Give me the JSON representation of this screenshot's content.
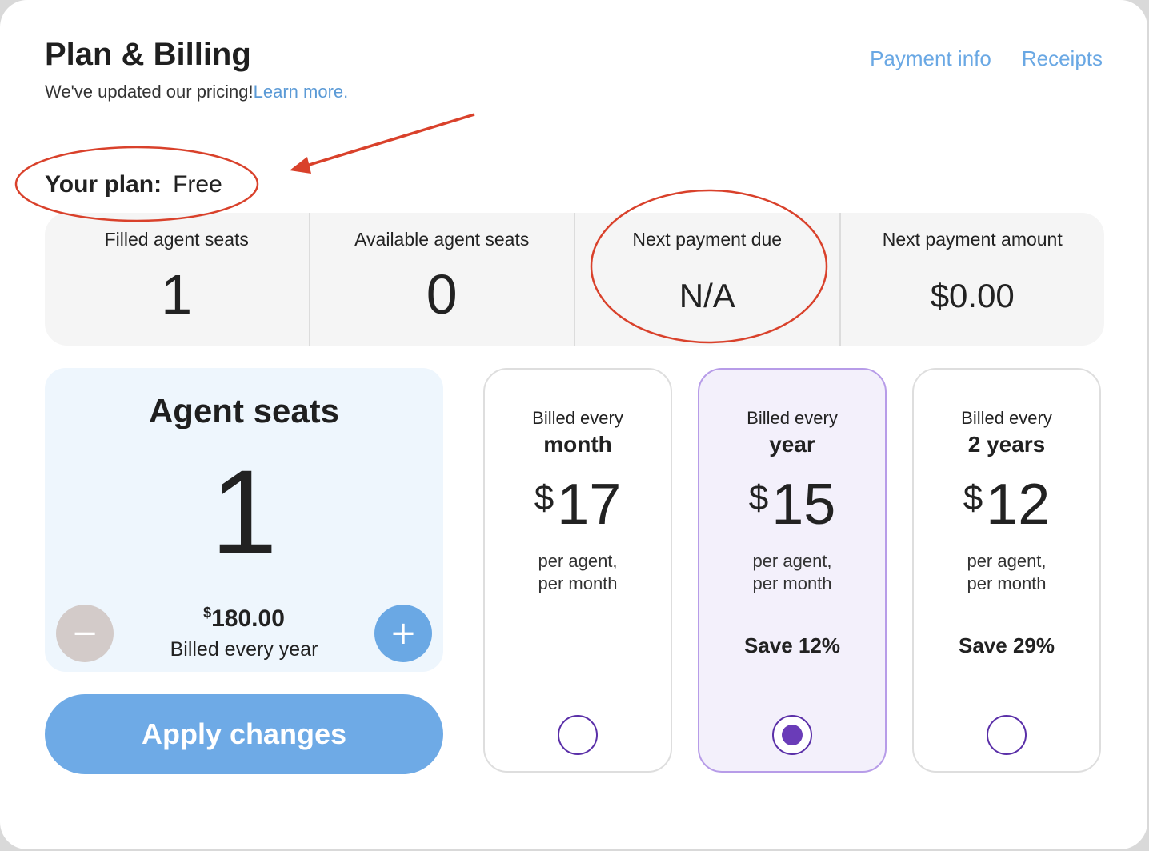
{
  "header": {
    "title": "Plan & Billing",
    "subtitle": "We've updated our pricing!",
    "learn_more": "Learn more.",
    "links": [
      "Payment info",
      "Receipts"
    ]
  },
  "plan": {
    "label": "Your plan:",
    "value": "Free"
  },
  "stats": [
    {
      "label": "Filled agent seats",
      "value": "1"
    },
    {
      "label": "Available agent seats",
      "value": "0"
    },
    {
      "label": "Next payment due",
      "value": "N/A"
    },
    {
      "label": "Next payment amount",
      "value": "$0.00"
    }
  ],
  "seats": {
    "title": "Agent seats",
    "count": "1",
    "minus": "−",
    "plus": "+",
    "price_currency": "$",
    "price_amount": "180.00",
    "billing": "Billed every year"
  },
  "apply_label": "Apply changes",
  "tiers": [
    {
      "billed": "Billed every",
      "period": "month",
      "currency": "$",
      "price": "17",
      "per1": "per agent,",
      "per2": "per month",
      "save": "",
      "selected": false
    },
    {
      "billed": "Billed every",
      "period": "year",
      "currency": "$",
      "price": "15",
      "per1": "per agent,",
      "per2": "per month",
      "save": "Save 12%",
      "selected": true
    },
    {
      "billed": "Billed every",
      "period": "2 years",
      "currency": "$",
      "price": "12",
      "per1": "per agent,",
      "per2": "per month",
      "save": "Save 29%",
      "selected": false
    }
  ],
  "colors": {
    "link": "#6aa8e4",
    "accent_purple": "#6a3cb8",
    "annotation_red": "#d9412b"
  }
}
